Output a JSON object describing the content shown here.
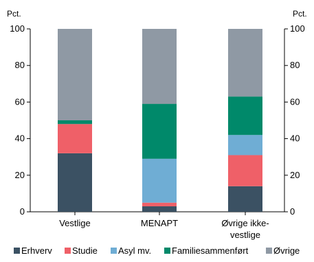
{
  "chart_data": {
    "type": "bar",
    "stacked": true,
    "y_unit_left": "Pct.",
    "y_unit_right": "Pct.",
    "ylim": [
      0,
      100
    ],
    "yticks": [
      0,
      20,
      40,
      60,
      80,
      100
    ],
    "categories": [
      [
        "Vestlige"
      ],
      [
        "MENAPT"
      ],
      [
        "Øvrige ikke-",
        "vestlige"
      ]
    ],
    "series": [
      {
        "name": "Erhverv",
        "color": "#3b5163",
        "values": [
          32,
          3,
          14
        ]
      },
      {
        "name": "Studie",
        "color": "#ef6068",
        "values": [
          16,
          2,
          17
        ]
      },
      {
        "name": "Asyl mv.",
        "color": "#6fadd4",
        "values": [
          0,
          24,
          11
        ]
      },
      {
        "name": "Familiesammenført",
        "color": "#00896a",
        "values": [
          2,
          30,
          21
        ]
      },
      {
        "name": "Øvrige",
        "color": "#8f99a4",
        "values": [
          50,
          41,
          37
        ]
      }
    ],
    "legend_position": "bottom",
    "grid": false
  }
}
